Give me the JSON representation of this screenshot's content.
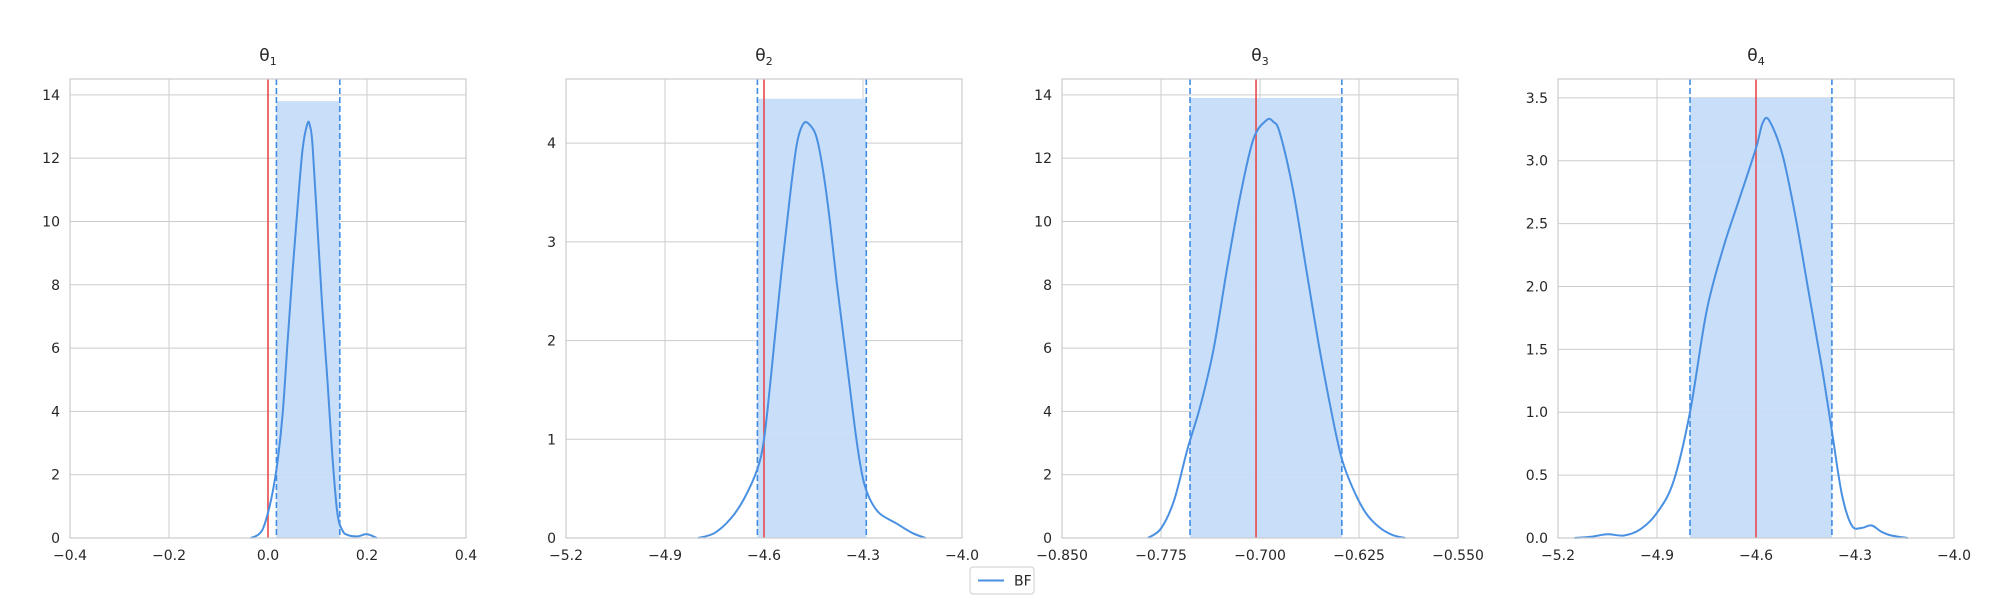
{
  "chart_data": [
    {
      "type": "area",
      "title": "θ₁",
      "title_base": "θ",
      "title_sub": "1",
      "xlim": [
        -0.4,
        0.4
      ],
      "ylim": [
        0,
        14.5
      ],
      "xticks": [
        -0.4,
        -0.2,
        0.0,
        0.2,
        0.4
      ],
      "xtick_labels": [
        "−0.4",
        "−0.2",
        "0.0",
        "0.2",
        "0.4"
      ],
      "yticks": [
        0,
        2,
        4,
        6,
        8,
        10,
        12,
        14
      ],
      "ytick_labels": [
        "0",
        "2",
        "4",
        "6",
        "8",
        "10",
        "12",
        "14"
      ],
      "true_value": 0.0,
      "interval": [
        0.017,
        0.145
      ],
      "interval_height": 13.8,
      "grid": true,
      "series": [
        {
          "name": "BF",
          "x": [
            -0.035,
            -0.02,
            -0.01,
            0.0,
            0.01,
            0.02,
            0.03,
            0.04,
            0.05,
            0.06,
            0.07,
            0.08,
            0.085,
            0.09,
            0.1,
            0.11,
            0.12,
            0.13,
            0.14,
            0.15,
            0.16,
            0.18,
            0.2,
            0.22
          ],
          "y": [
            0.0,
            0.1,
            0.3,
            0.8,
            1.5,
            2.5,
            4.0,
            6.3,
            8.5,
            10.5,
            12.3,
            13.1,
            13.0,
            12.4,
            9.8,
            7.2,
            5.0,
            2.6,
            0.8,
            0.25,
            0.1,
            0.05,
            0.12,
            0.0
          ]
        }
      ]
    },
    {
      "type": "area",
      "title": "θ₂",
      "title_base": "θ",
      "title_sub": "2",
      "xlim": [
        -5.2,
        -4.0
      ],
      "ylim": [
        0,
        4.65
      ],
      "xticks": [
        -5.2,
        -4.9,
        -4.6,
        -4.3,
        -4.0
      ],
      "xtick_labels": [
        "−5.2",
        "−4.9",
        "−4.6",
        "−4.3",
        "−4.0"
      ],
      "yticks": [
        0,
        1,
        2,
        3,
        4
      ],
      "ytick_labels": [
        "0",
        "1",
        "2",
        "3",
        "4"
      ],
      "true_value": -4.6,
      "interval": [
        -4.62,
        -4.29
      ],
      "interval_height": 4.45,
      "grid": true,
      "series": [
        {
          "name": "BF",
          "x": [
            -4.8,
            -4.75,
            -4.7,
            -4.66,
            -4.62,
            -4.6,
            -4.58,
            -4.55,
            -4.52,
            -4.5,
            -4.48,
            -4.46,
            -4.44,
            -4.42,
            -4.4,
            -4.38,
            -4.35,
            -4.32,
            -4.3,
            -4.28,
            -4.25,
            -4.2,
            -4.15,
            -4.11
          ],
          "y": [
            0.0,
            0.05,
            0.2,
            0.4,
            0.7,
            1.0,
            1.6,
            2.6,
            3.5,
            4.0,
            4.2,
            4.18,
            4.05,
            3.7,
            3.2,
            2.6,
            1.8,
            1.0,
            0.6,
            0.4,
            0.25,
            0.15,
            0.05,
            0.0
          ]
        }
      ]
    },
    {
      "type": "area",
      "title": "θ₃",
      "title_base": "θ",
      "title_sub": "3",
      "xlim": [
        -0.85,
        -0.55
      ],
      "ylim": [
        0,
        14.5
      ],
      "xticks": [
        -0.85,
        -0.775,
        -0.7,
        -0.625,
        -0.55
      ],
      "xtick_labels": [
        "−0.850",
        "−0.775",
        "−0.700",
        "−0.625",
        "−0.550"
      ],
      "yticks": [
        0,
        2,
        4,
        6,
        8,
        10,
        12,
        14
      ],
      "ytick_labels": [
        "0",
        "2",
        "4",
        "6",
        "8",
        "10",
        "12",
        "14"
      ],
      "true_value": -0.703,
      "interval": [
        -0.753,
        -0.638
      ],
      "interval_height": 13.9,
      "grid": true,
      "series": [
        {
          "name": "BF",
          "x": [
            -0.785,
            -0.775,
            -0.765,
            -0.755,
            -0.745,
            -0.735,
            -0.725,
            -0.715,
            -0.705,
            -0.695,
            -0.69,
            -0.685,
            -0.675,
            -0.665,
            -0.655,
            -0.645,
            -0.638,
            -0.63,
            -0.62,
            -0.61,
            -0.6,
            -0.59
          ],
          "y": [
            0.0,
            0.3,
            1.2,
            2.8,
            4.2,
            6.0,
            8.5,
            10.8,
            12.6,
            13.2,
            13.15,
            12.8,
            11.0,
            8.5,
            6.0,
            3.8,
            2.5,
            1.6,
            0.8,
            0.35,
            0.1,
            0.0
          ]
        }
      ]
    },
    {
      "type": "area",
      "title": "θ₄",
      "title_base": "θ",
      "title_sub": "4",
      "xlim": [
        -5.2,
        -4.0
      ],
      "ylim": [
        0,
        3.65
      ],
      "xticks": [
        -5.2,
        -4.9,
        -4.6,
        -4.3,
        -4.0
      ],
      "xtick_labels": [
        "−5.2",
        "−4.9",
        "−4.6",
        "−4.3",
        "−4.0"
      ],
      "yticks": [
        0.0,
        0.5,
        1.0,
        1.5,
        2.0,
        2.5,
        3.0,
        3.5
      ],
      "ytick_labels": [
        "0.0",
        "0.5",
        "1.0",
        "1.5",
        "2.0",
        "2.5",
        "3.0",
        "3.5"
      ],
      "true_value": -4.6,
      "interval": [
        -4.8,
        -4.37
      ],
      "interval_height": 3.5,
      "grid": true,
      "series": [
        {
          "name": "BF",
          "x": [
            -5.15,
            -5.1,
            -5.05,
            -5.0,
            -4.95,
            -4.9,
            -4.85,
            -4.8,
            -4.75,
            -4.7,
            -4.65,
            -4.6,
            -4.58,
            -4.56,
            -4.52,
            -4.48,
            -4.44,
            -4.4,
            -4.37,
            -4.34,
            -4.31,
            -4.28,
            -4.25,
            -4.22,
            -4.19,
            -4.14
          ],
          "y": [
            0.0,
            0.01,
            0.03,
            0.02,
            0.07,
            0.2,
            0.45,
            1.0,
            1.8,
            2.3,
            2.7,
            3.1,
            3.3,
            3.32,
            3.05,
            2.55,
            1.95,
            1.35,
            0.85,
            0.35,
            0.1,
            0.08,
            0.1,
            0.05,
            0.02,
            0.0
          ]
        }
      ]
    }
  ],
  "legend": {
    "label": "BF",
    "color": "#4a90e2",
    "placement": "bottom-center"
  },
  "colors": {
    "density_line": "#4a90e2",
    "interval_fill": "#c6dcf8",
    "interval_edge": "#3f8ce5",
    "true_value_line": "#e8494b",
    "grid": "#cccccc",
    "axes_edge": "#cccccc"
  }
}
